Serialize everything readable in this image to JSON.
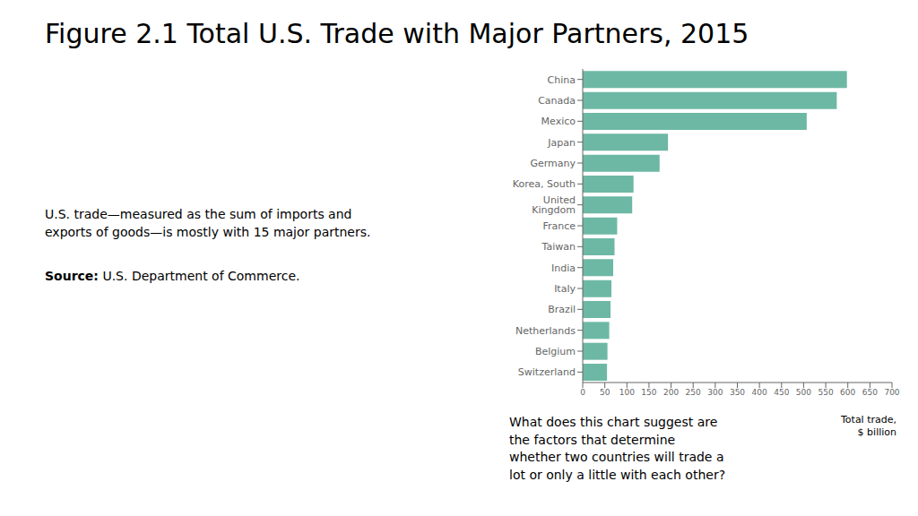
{
  "chart_data": {
    "type": "bar",
    "orientation": "horizontal",
    "title": "Figure 2.1 Total U.S. Trade with Major Partners, 2015",
    "subtitle": "U.S. trade—measured as the sum of imports and\nexports of goods—is mostly with 15 major partners.",
    "annotations": [
      "Source: U.S. Department of Commerce.",
      "What does this chart suggest are\nthe factors that determine\nwhether two countries will trade a\nlot or only a little with each other?"
    ],
    "x_label": "Total trade,\n$ billion",
    "categories": [
      "China",
      "Canada",
      "Mexico",
      "Japan",
      "Germany",
      "Korea, South",
      "United Kingdom",
      "France",
      "Taiwan",
      "India",
      "Italy",
      "Brazil",
      "Netherlands",
      "Belgium",
      "Switzerland"
    ],
    "values": [
      598,
      575,
      507,
      193,
      174,
      115,
      112,
      78,
      72,
      69,
      65,
      63,
      60,
      56,
      55
    ],
    "color": "#6db8a4",
    "xlim": [
      0,
      700
    ],
    "xticks": [
      0,
      50,
      100,
      150,
      200,
      250,
      300,
      350,
      400,
      450,
      500,
      550,
      600,
      650,
      700
    ],
    "grid": false
  }
}
